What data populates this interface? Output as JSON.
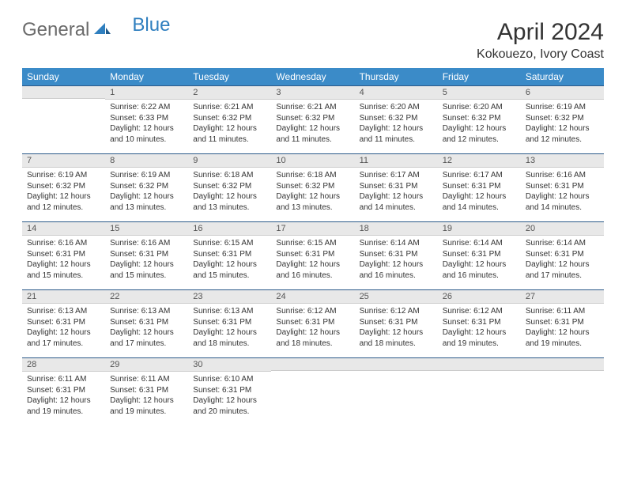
{
  "brand": {
    "part1": "General",
    "part2": "Blue",
    "part1_color": "#6b6b6b",
    "part2_color": "#2f7fbf",
    "mark_color": "#2f7fbf"
  },
  "title": "April 2024",
  "location": "Kokouezo, Ivory Coast",
  "header_bg": "#3b8bc8",
  "header_fg": "#ffffff",
  "daynum_bg": "#e8e8e8",
  "daynum_border_top": "#2c5a8a",
  "weekdays": [
    "Sunday",
    "Monday",
    "Tuesday",
    "Wednesday",
    "Thursday",
    "Friday",
    "Saturday"
  ],
  "weeks": [
    [
      null,
      {
        "n": "1",
        "sr": "6:22 AM",
        "ss": "6:33 PM",
        "dl": "12 hours and 10 minutes."
      },
      {
        "n": "2",
        "sr": "6:21 AM",
        "ss": "6:32 PM",
        "dl": "12 hours and 11 minutes."
      },
      {
        "n": "3",
        "sr": "6:21 AM",
        "ss": "6:32 PM",
        "dl": "12 hours and 11 minutes."
      },
      {
        "n": "4",
        "sr": "6:20 AM",
        "ss": "6:32 PM",
        "dl": "12 hours and 11 minutes."
      },
      {
        "n": "5",
        "sr": "6:20 AM",
        "ss": "6:32 PM",
        "dl": "12 hours and 12 minutes."
      },
      {
        "n": "6",
        "sr": "6:19 AM",
        "ss": "6:32 PM",
        "dl": "12 hours and 12 minutes."
      }
    ],
    [
      {
        "n": "7",
        "sr": "6:19 AM",
        "ss": "6:32 PM",
        "dl": "12 hours and 12 minutes."
      },
      {
        "n": "8",
        "sr": "6:19 AM",
        "ss": "6:32 PM",
        "dl": "12 hours and 13 minutes."
      },
      {
        "n": "9",
        "sr": "6:18 AM",
        "ss": "6:32 PM",
        "dl": "12 hours and 13 minutes."
      },
      {
        "n": "10",
        "sr": "6:18 AM",
        "ss": "6:32 PM",
        "dl": "12 hours and 13 minutes."
      },
      {
        "n": "11",
        "sr": "6:17 AM",
        "ss": "6:31 PM",
        "dl": "12 hours and 14 minutes."
      },
      {
        "n": "12",
        "sr": "6:17 AM",
        "ss": "6:31 PM",
        "dl": "12 hours and 14 minutes."
      },
      {
        "n": "13",
        "sr": "6:16 AM",
        "ss": "6:31 PM",
        "dl": "12 hours and 14 minutes."
      }
    ],
    [
      {
        "n": "14",
        "sr": "6:16 AM",
        "ss": "6:31 PM",
        "dl": "12 hours and 15 minutes."
      },
      {
        "n": "15",
        "sr": "6:16 AM",
        "ss": "6:31 PM",
        "dl": "12 hours and 15 minutes."
      },
      {
        "n": "16",
        "sr": "6:15 AM",
        "ss": "6:31 PM",
        "dl": "12 hours and 15 minutes."
      },
      {
        "n": "17",
        "sr": "6:15 AM",
        "ss": "6:31 PM",
        "dl": "12 hours and 16 minutes."
      },
      {
        "n": "18",
        "sr": "6:14 AM",
        "ss": "6:31 PM",
        "dl": "12 hours and 16 minutes."
      },
      {
        "n": "19",
        "sr": "6:14 AM",
        "ss": "6:31 PM",
        "dl": "12 hours and 16 minutes."
      },
      {
        "n": "20",
        "sr": "6:14 AM",
        "ss": "6:31 PM",
        "dl": "12 hours and 17 minutes."
      }
    ],
    [
      {
        "n": "21",
        "sr": "6:13 AM",
        "ss": "6:31 PM",
        "dl": "12 hours and 17 minutes."
      },
      {
        "n": "22",
        "sr": "6:13 AM",
        "ss": "6:31 PM",
        "dl": "12 hours and 17 minutes."
      },
      {
        "n": "23",
        "sr": "6:13 AM",
        "ss": "6:31 PM",
        "dl": "12 hours and 18 minutes."
      },
      {
        "n": "24",
        "sr": "6:12 AM",
        "ss": "6:31 PM",
        "dl": "12 hours and 18 minutes."
      },
      {
        "n": "25",
        "sr": "6:12 AM",
        "ss": "6:31 PM",
        "dl": "12 hours and 18 minutes."
      },
      {
        "n": "26",
        "sr": "6:12 AM",
        "ss": "6:31 PM",
        "dl": "12 hours and 19 minutes."
      },
      {
        "n": "27",
        "sr": "6:11 AM",
        "ss": "6:31 PM",
        "dl": "12 hours and 19 minutes."
      }
    ],
    [
      {
        "n": "28",
        "sr": "6:11 AM",
        "ss": "6:31 PM",
        "dl": "12 hours and 19 minutes."
      },
      {
        "n": "29",
        "sr": "6:11 AM",
        "ss": "6:31 PM",
        "dl": "12 hours and 19 minutes."
      },
      {
        "n": "30",
        "sr": "6:10 AM",
        "ss": "6:31 PM",
        "dl": "12 hours and 20 minutes."
      },
      null,
      null,
      null,
      null
    ]
  ],
  "labels": {
    "sunrise": "Sunrise: ",
    "sunset": "Sunset: ",
    "daylight": "Daylight: "
  }
}
